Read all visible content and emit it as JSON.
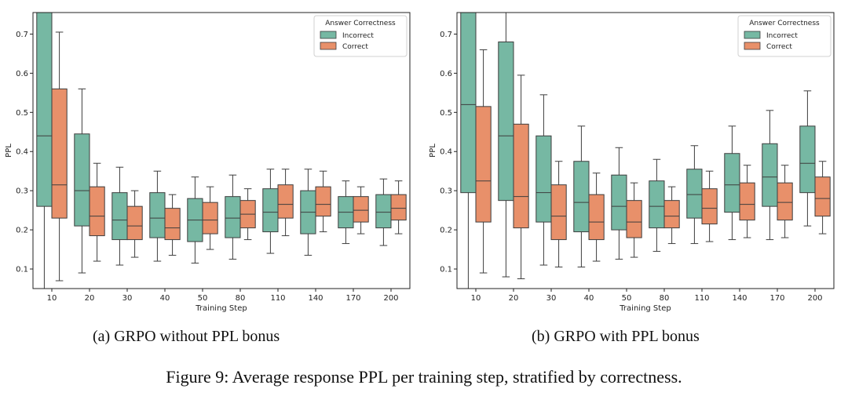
{
  "figure_caption": "Figure 9: Average response PPL per training step, stratified by correctness.",
  "panels": [
    {
      "caption": "(a) GRPO without PPL bonus"
    },
    {
      "caption": "(b) GRPO with PPL bonus"
    }
  ],
  "colors": {
    "incorrect": "#76b8a3",
    "correct": "#e8906a",
    "whisker": "#3d3d3d"
  },
  "chart_data": [
    {
      "type": "box",
      "title": "",
      "xlabel": "Training Step",
      "ylabel": "PPL",
      "ylim": [
        0.05,
        0.755
      ],
      "yticks": [
        0.1,
        0.2,
        0.3,
        0.4,
        0.5,
        0.6,
        0.7
      ],
      "ytick_labels": [
        "0.1",
        "0.2",
        "0.3",
        "0.4",
        "0.5",
        "0.6",
        "0.7"
      ],
      "categories": [
        "10",
        "20",
        "30",
        "40",
        "50",
        "80",
        "110",
        "140",
        "170",
        "200"
      ],
      "legend": {
        "title": "Answer Correctness",
        "position": "top-right",
        "entries": [
          "Incorrect",
          "Correct"
        ]
      },
      "series": [
        {
          "name": "Incorrect",
          "boxes": [
            {
              "whislo": 0.05,
              "q1": 0.26,
              "med": 0.44,
              "q3": 0.755,
              "whishi": 0.755
            },
            {
              "whislo": 0.09,
              "q1": 0.21,
              "med": 0.3,
              "q3": 0.445,
              "whishi": 0.56
            },
            {
              "whislo": 0.11,
              "q1": 0.175,
              "med": 0.225,
              "q3": 0.295,
              "whishi": 0.36
            },
            {
              "whislo": 0.12,
              "q1": 0.18,
              "med": 0.23,
              "q3": 0.295,
              "whishi": 0.35
            },
            {
              "whislo": 0.115,
              "q1": 0.17,
              "med": 0.225,
              "q3": 0.28,
              "whishi": 0.335
            },
            {
              "whislo": 0.125,
              "q1": 0.18,
              "med": 0.23,
              "q3": 0.285,
              "whishi": 0.34
            },
            {
              "whislo": 0.14,
              "q1": 0.195,
              "med": 0.245,
              "q3": 0.305,
              "whishi": 0.355
            },
            {
              "whislo": 0.135,
              "q1": 0.19,
              "med": 0.245,
              "q3": 0.3,
              "whishi": 0.355
            },
            {
              "whislo": 0.165,
              "q1": 0.205,
              "med": 0.245,
              "q3": 0.285,
              "whishi": 0.325
            },
            {
              "whislo": 0.16,
              "q1": 0.205,
              "med": 0.245,
              "q3": 0.29,
              "whishi": 0.33
            }
          ]
        },
        {
          "name": "Correct",
          "boxes": [
            {
              "whislo": 0.07,
              "q1": 0.23,
              "med": 0.315,
              "q3": 0.56,
              "whishi": 0.705
            },
            {
              "whislo": 0.12,
              "q1": 0.185,
              "med": 0.235,
              "q3": 0.31,
              "whishi": 0.37
            },
            {
              "whislo": 0.13,
              "q1": 0.175,
              "med": 0.21,
              "q3": 0.26,
              "whishi": 0.3
            },
            {
              "whislo": 0.135,
              "q1": 0.175,
              "med": 0.205,
              "q3": 0.255,
              "whishi": 0.29
            },
            {
              "whislo": 0.15,
              "q1": 0.19,
              "med": 0.225,
              "q3": 0.27,
              "whishi": 0.31
            },
            {
              "whislo": 0.175,
              "q1": 0.205,
              "med": 0.24,
              "q3": 0.275,
              "whishi": 0.305
            },
            {
              "whislo": 0.185,
              "q1": 0.23,
              "med": 0.265,
              "q3": 0.315,
              "whishi": 0.355
            },
            {
              "whislo": 0.195,
              "q1": 0.235,
              "med": 0.265,
              "q3": 0.31,
              "whishi": 0.35
            },
            {
              "whislo": 0.19,
              "q1": 0.22,
              "med": 0.25,
              "q3": 0.285,
              "whishi": 0.31
            },
            {
              "whislo": 0.19,
              "q1": 0.225,
              "med": 0.255,
              "q3": 0.29,
              "whishi": 0.325
            }
          ]
        }
      ]
    },
    {
      "type": "box",
      "title": "",
      "xlabel": "Training Step",
      "ylabel": "PPL",
      "ylim": [
        0.05,
        0.755
      ],
      "yticks": [
        0.1,
        0.2,
        0.3,
        0.4,
        0.5,
        0.6,
        0.7
      ],
      "ytick_labels": [
        "0.1",
        "0.2",
        "0.3",
        "0.4",
        "0.5",
        "0.6",
        "0.7"
      ],
      "categories": [
        "10",
        "20",
        "30",
        "40",
        "50",
        "80",
        "110",
        "140",
        "170",
        "200"
      ],
      "legend": {
        "title": "Answer Correctness",
        "position": "top-right",
        "entries": [
          "Incorrect",
          "Correct"
        ]
      },
      "series": [
        {
          "name": "Incorrect",
          "boxes": [
            {
              "whislo": 0.05,
              "q1": 0.295,
              "med": 0.52,
              "q3": 0.755,
              "whishi": 0.755
            },
            {
              "whislo": 0.08,
              "q1": 0.275,
              "med": 0.44,
              "q3": 0.68,
              "whishi": 0.755
            },
            {
              "whislo": 0.11,
              "q1": 0.22,
              "med": 0.295,
              "q3": 0.44,
              "whishi": 0.545
            },
            {
              "whislo": 0.105,
              "q1": 0.195,
              "med": 0.27,
              "q3": 0.375,
              "whishi": 0.465
            },
            {
              "whislo": 0.125,
              "q1": 0.2,
              "med": 0.26,
              "q3": 0.34,
              "whishi": 0.41
            },
            {
              "whislo": 0.145,
              "q1": 0.205,
              "med": 0.26,
              "q3": 0.325,
              "whishi": 0.38
            },
            {
              "whislo": 0.165,
              "q1": 0.23,
              "med": 0.29,
              "q3": 0.355,
              "whishi": 0.415
            },
            {
              "whislo": 0.175,
              "q1": 0.245,
              "med": 0.315,
              "q3": 0.395,
              "whishi": 0.465
            },
            {
              "whislo": 0.175,
              "q1": 0.26,
              "med": 0.335,
              "q3": 0.42,
              "whishi": 0.505
            },
            {
              "whislo": 0.21,
              "q1": 0.295,
              "med": 0.37,
              "q3": 0.465,
              "whishi": 0.555
            }
          ]
        },
        {
          "name": "Correct",
          "boxes": [
            {
              "whislo": 0.09,
              "q1": 0.22,
              "med": 0.325,
              "q3": 0.515,
              "whishi": 0.66
            },
            {
              "whislo": 0.075,
              "q1": 0.205,
              "med": 0.285,
              "q3": 0.47,
              "whishi": 0.595
            },
            {
              "whislo": 0.105,
              "q1": 0.175,
              "med": 0.235,
              "q3": 0.315,
              "whishi": 0.375
            },
            {
              "whislo": 0.12,
              "q1": 0.175,
              "med": 0.22,
              "q3": 0.29,
              "whishi": 0.345
            },
            {
              "whislo": 0.13,
              "q1": 0.18,
              "med": 0.22,
              "q3": 0.275,
              "whishi": 0.32
            },
            {
              "whislo": 0.165,
              "q1": 0.205,
              "med": 0.235,
              "q3": 0.275,
              "whishi": 0.31
            },
            {
              "whislo": 0.17,
              "q1": 0.215,
              "med": 0.255,
              "q3": 0.305,
              "whishi": 0.35
            },
            {
              "whislo": 0.18,
              "q1": 0.225,
              "med": 0.265,
              "q3": 0.32,
              "whishi": 0.365
            },
            {
              "whislo": 0.18,
              "q1": 0.225,
              "med": 0.27,
              "q3": 0.32,
              "whishi": 0.365
            },
            {
              "whislo": 0.19,
              "q1": 0.235,
              "med": 0.28,
              "q3": 0.335,
              "whishi": 0.375
            }
          ]
        }
      ]
    }
  ]
}
